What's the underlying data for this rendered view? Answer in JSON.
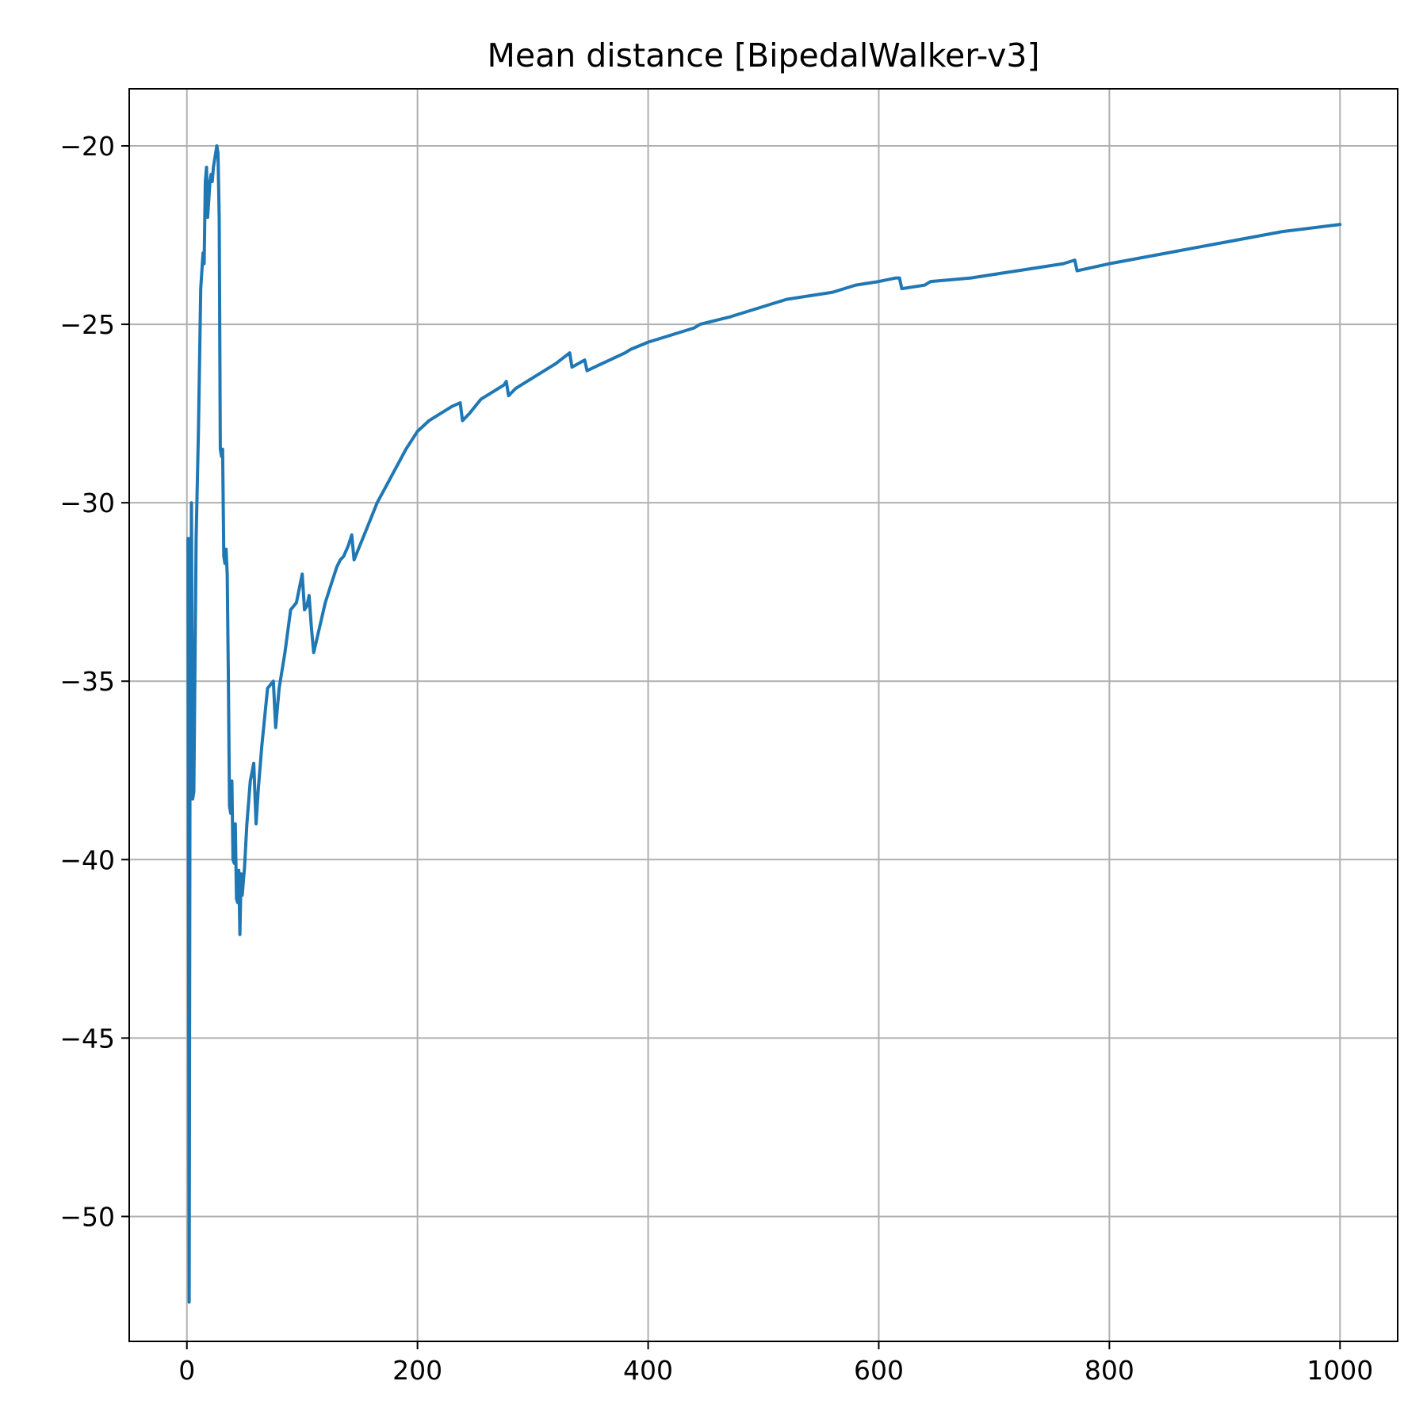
{
  "chart_data": {
    "type": "line",
    "title": "Mean distance [BipedalWalker-v3]",
    "xlabel": "",
    "ylabel": "",
    "xlim": [
      -50,
      1050
    ],
    "ylim": [
      -53.5,
      -18.4
    ],
    "grid": true,
    "xticks": [
      0,
      200,
      400,
      600,
      800,
      1000
    ],
    "xtick_labels": [
      "0",
      "200",
      "400",
      "600",
      "800",
      "1000"
    ],
    "yticks": [
      -20,
      -25,
      -30,
      -35,
      -40,
      -45,
      -50
    ],
    "ytick_labels": [
      "−20",
      "−25",
      "−30",
      "−35",
      "−40",
      "−45",
      "−50"
    ],
    "series": [
      {
        "color": "#1f77b4",
        "x": [
          1,
          2,
          3,
          3.5,
          4,
          5,
          6,
          8,
          10,
          12,
          14,
          15,
          16,
          17,
          18,
          19,
          20,
          21,
          22,
          23,
          24,
          25,
          26,
          27,
          28,
          29,
          30,
          31,
          32,
          33,
          34,
          35,
          36,
          37,
          38,
          39,
          40,
          41,
          42,
          43,
          44,
          45,
          46,
          47,
          48,
          50,
          52,
          55,
          58,
          60,
          62,
          65,
          70,
          75,
          77,
          80,
          85,
          90,
          95,
          100,
          102,
          104,
          106,
          108,
          110,
          115,
          120,
          125,
          130,
          133,
          136,
          140,
          143,
          145,
          150,
          155,
          160,
          165,
          170,
          175,
          180,
          190,
          200,
          210,
          220,
          230,
          237,
          239,
          245,
          255,
          265,
          275,
          277,
          279,
          285,
          295,
          300,
          310,
          320,
          332,
          334,
          345,
          347,
          360,
          380,
          385,
          400,
          420,
          440,
          445,
          470,
          480,
          500,
          510,
          520,
          540,
          560,
          580,
          600,
          615,
          618,
          620,
          640,
          645,
          680,
          720,
          760,
          770,
          772,
          800,
          850,
          900,
          950,
          1000
        ],
        "y": [
          -31.0,
          -52.4,
          -31.0,
          -35.0,
          -30.0,
          -38.3,
          -38.1,
          -31.0,
          -28.0,
          -24.0,
          -23.0,
          -23.3,
          -21.0,
          -20.6,
          -22.0,
          -21.5,
          -21.0,
          -20.8,
          -21.0,
          -20.6,
          -20.4,
          -20.2,
          -20.0,
          -20.2,
          -22.0,
          -28.5,
          -28.7,
          -28.5,
          -31.5,
          -31.7,
          -31.3,
          -32.0,
          -35.0,
          -38.5,
          -38.7,
          -37.8,
          -40.0,
          -40.1,
          -39.0,
          -41.1,
          -41.2,
          -40.3,
          -42.1,
          -40.4,
          -41.0,
          -40.2,
          -39.0,
          -37.8,
          -37.3,
          -39.0,
          -38.0,
          -36.8,
          -35.2,
          -35.0,
          -36.3,
          -35.2,
          -34.2,
          -33.0,
          -32.8,
          -32.0,
          -33.0,
          -32.9,
          -32.6,
          -33.5,
          -34.2,
          -33.5,
          -32.8,
          -32.3,
          -31.8,
          -31.6,
          -31.5,
          -31.2,
          -30.9,
          -31.6,
          -31.2,
          -30.8,
          -30.4,
          -30.0,
          -29.7,
          -29.4,
          -29.1,
          -28.5,
          -28.0,
          -27.7,
          -27.5,
          -27.3,
          -27.2,
          -27.7,
          -27.5,
          -27.1,
          -26.9,
          -26.7,
          -26.6,
          -27.0,
          -26.8,
          -26.6,
          -26.5,
          -26.3,
          -26.1,
          -25.8,
          -26.2,
          -26.0,
          -26.3,
          -26.1,
          -25.8,
          -25.7,
          -25.5,
          -25.3,
          -25.1,
          -25.0,
          -24.8,
          -24.7,
          -24.5,
          -24.4,
          -24.3,
          -24.2,
          -24.1,
          -23.9,
          -23.8,
          -23.7,
          -23.7,
          -24.0,
          -23.9,
          -23.8,
          -23.7,
          -23.5,
          -23.3,
          -23.2,
          -23.5,
          -23.3,
          -23.0,
          -22.7,
          -22.4,
          -22.2
        ]
      }
    ]
  }
}
